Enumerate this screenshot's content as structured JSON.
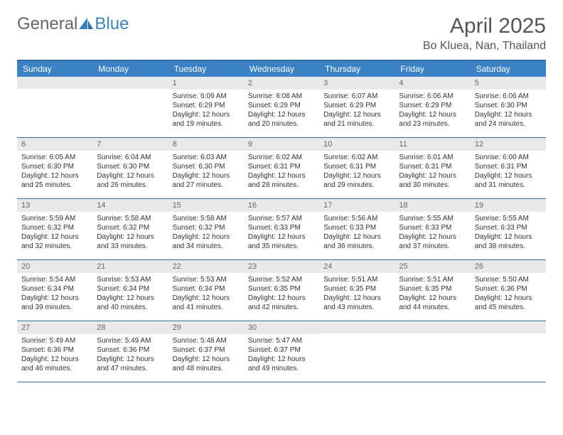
{
  "brand": {
    "part1": "General",
    "part2": "Blue"
  },
  "title": "April 2025",
  "location": "Bo Kluea, Nan, Thailand",
  "colors": {
    "header_bg": "#3b82c4",
    "header_border": "#2f6ea8",
    "daynum_bg": "#e9e9e9",
    "text": "#333333",
    "brand_gray": "#666666",
    "brand_blue": "#3b82c4"
  },
  "weekdays": [
    "Sunday",
    "Monday",
    "Tuesday",
    "Wednesday",
    "Thursday",
    "Friday",
    "Saturday"
  ],
  "cells": [
    {
      "blank": true
    },
    {
      "blank": true
    },
    {
      "day": "1",
      "sunrise": "Sunrise: 6:09 AM",
      "sunset": "Sunset: 6:29 PM",
      "daylight": "Daylight: 12 hours and 19 minutes."
    },
    {
      "day": "2",
      "sunrise": "Sunrise: 6:08 AM",
      "sunset": "Sunset: 6:29 PM",
      "daylight": "Daylight: 12 hours and 20 minutes."
    },
    {
      "day": "3",
      "sunrise": "Sunrise: 6:07 AM",
      "sunset": "Sunset: 6:29 PM",
      "daylight": "Daylight: 12 hours and 21 minutes."
    },
    {
      "day": "4",
      "sunrise": "Sunrise: 6:06 AM",
      "sunset": "Sunset: 6:29 PM",
      "daylight": "Daylight: 12 hours and 23 minutes."
    },
    {
      "day": "5",
      "sunrise": "Sunrise: 6:06 AM",
      "sunset": "Sunset: 6:30 PM",
      "daylight": "Daylight: 12 hours and 24 minutes."
    },
    {
      "day": "6",
      "sunrise": "Sunrise: 6:05 AM",
      "sunset": "Sunset: 6:30 PM",
      "daylight": "Daylight: 12 hours and 25 minutes."
    },
    {
      "day": "7",
      "sunrise": "Sunrise: 6:04 AM",
      "sunset": "Sunset: 6:30 PM",
      "daylight": "Daylight: 12 hours and 26 minutes."
    },
    {
      "day": "8",
      "sunrise": "Sunrise: 6:03 AM",
      "sunset": "Sunset: 6:30 PM",
      "daylight": "Daylight: 12 hours and 27 minutes."
    },
    {
      "day": "9",
      "sunrise": "Sunrise: 6:02 AM",
      "sunset": "Sunset: 6:31 PM",
      "daylight": "Daylight: 12 hours and 28 minutes."
    },
    {
      "day": "10",
      "sunrise": "Sunrise: 6:02 AM",
      "sunset": "Sunset: 6:31 PM",
      "daylight": "Daylight: 12 hours and 29 minutes."
    },
    {
      "day": "11",
      "sunrise": "Sunrise: 6:01 AM",
      "sunset": "Sunset: 6:31 PM",
      "daylight": "Daylight: 12 hours and 30 minutes."
    },
    {
      "day": "12",
      "sunrise": "Sunrise: 6:00 AM",
      "sunset": "Sunset: 6:31 PM",
      "daylight": "Daylight: 12 hours and 31 minutes."
    },
    {
      "day": "13",
      "sunrise": "Sunrise: 5:59 AM",
      "sunset": "Sunset: 6:32 PM",
      "daylight": "Daylight: 12 hours and 32 minutes."
    },
    {
      "day": "14",
      "sunrise": "Sunrise: 5:58 AM",
      "sunset": "Sunset: 6:32 PM",
      "daylight": "Daylight: 12 hours and 33 minutes."
    },
    {
      "day": "15",
      "sunrise": "Sunrise: 5:58 AM",
      "sunset": "Sunset: 6:32 PM",
      "daylight": "Daylight: 12 hours and 34 minutes."
    },
    {
      "day": "16",
      "sunrise": "Sunrise: 5:57 AM",
      "sunset": "Sunset: 6:33 PM",
      "daylight": "Daylight: 12 hours and 35 minutes."
    },
    {
      "day": "17",
      "sunrise": "Sunrise: 5:56 AM",
      "sunset": "Sunset: 6:33 PM",
      "daylight": "Daylight: 12 hours and 36 minutes."
    },
    {
      "day": "18",
      "sunrise": "Sunrise: 5:55 AM",
      "sunset": "Sunset: 6:33 PM",
      "daylight": "Daylight: 12 hours and 37 minutes."
    },
    {
      "day": "19",
      "sunrise": "Sunrise: 5:55 AM",
      "sunset": "Sunset: 6:33 PM",
      "daylight": "Daylight: 12 hours and 38 minutes."
    },
    {
      "day": "20",
      "sunrise": "Sunrise: 5:54 AM",
      "sunset": "Sunset: 6:34 PM",
      "daylight": "Daylight: 12 hours and 39 minutes."
    },
    {
      "day": "21",
      "sunrise": "Sunrise: 5:53 AM",
      "sunset": "Sunset: 6:34 PM",
      "daylight": "Daylight: 12 hours and 40 minutes."
    },
    {
      "day": "22",
      "sunrise": "Sunrise: 5:53 AM",
      "sunset": "Sunset: 6:34 PM",
      "daylight": "Daylight: 12 hours and 41 minutes."
    },
    {
      "day": "23",
      "sunrise": "Sunrise: 5:52 AM",
      "sunset": "Sunset: 6:35 PM",
      "daylight": "Daylight: 12 hours and 42 minutes."
    },
    {
      "day": "24",
      "sunrise": "Sunrise: 5:51 AM",
      "sunset": "Sunset: 6:35 PM",
      "daylight": "Daylight: 12 hours and 43 minutes."
    },
    {
      "day": "25",
      "sunrise": "Sunrise: 5:51 AM",
      "sunset": "Sunset: 6:35 PM",
      "daylight": "Daylight: 12 hours and 44 minutes."
    },
    {
      "day": "26",
      "sunrise": "Sunrise: 5:50 AM",
      "sunset": "Sunset: 6:36 PM",
      "daylight": "Daylight: 12 hours and 45 minutes."
    },
    {
      "day": "27",
      "sunrise": "Sunrise: 5:49 AM",
      "sunset": "Sunset: 6:36 PM",
      "daylight": "Daylight: 12 hours and 46 minutes."
    },
    {
      "day": "28",
      "sunrise": "Sunrise: 5:49 AM",
      "sunset": "Sunset: 6:36 PM",
      "daylight": "Daylight: 12 hours and 47 minutes."
    },
    {
      "day": "29",
      "sunrise": "Sunrise: 5:48 AM",
      "sunset": "Sunset: 6:37 PM",
      "daylight": "Daylight: 12 hours and 48 minutes."
    },
    {
      "day": "30",
      "sunrise": "Sunrise: 5:47 AM",
      "sunset": "Sunset: 6:37 PM",
      "daylight": "Daylight: 12 hours and 49 minutes."
    },
    {
      "blank": true
    },
    {
      "blank": true
    },
    {
      "blank": true
    }
  ]
}
